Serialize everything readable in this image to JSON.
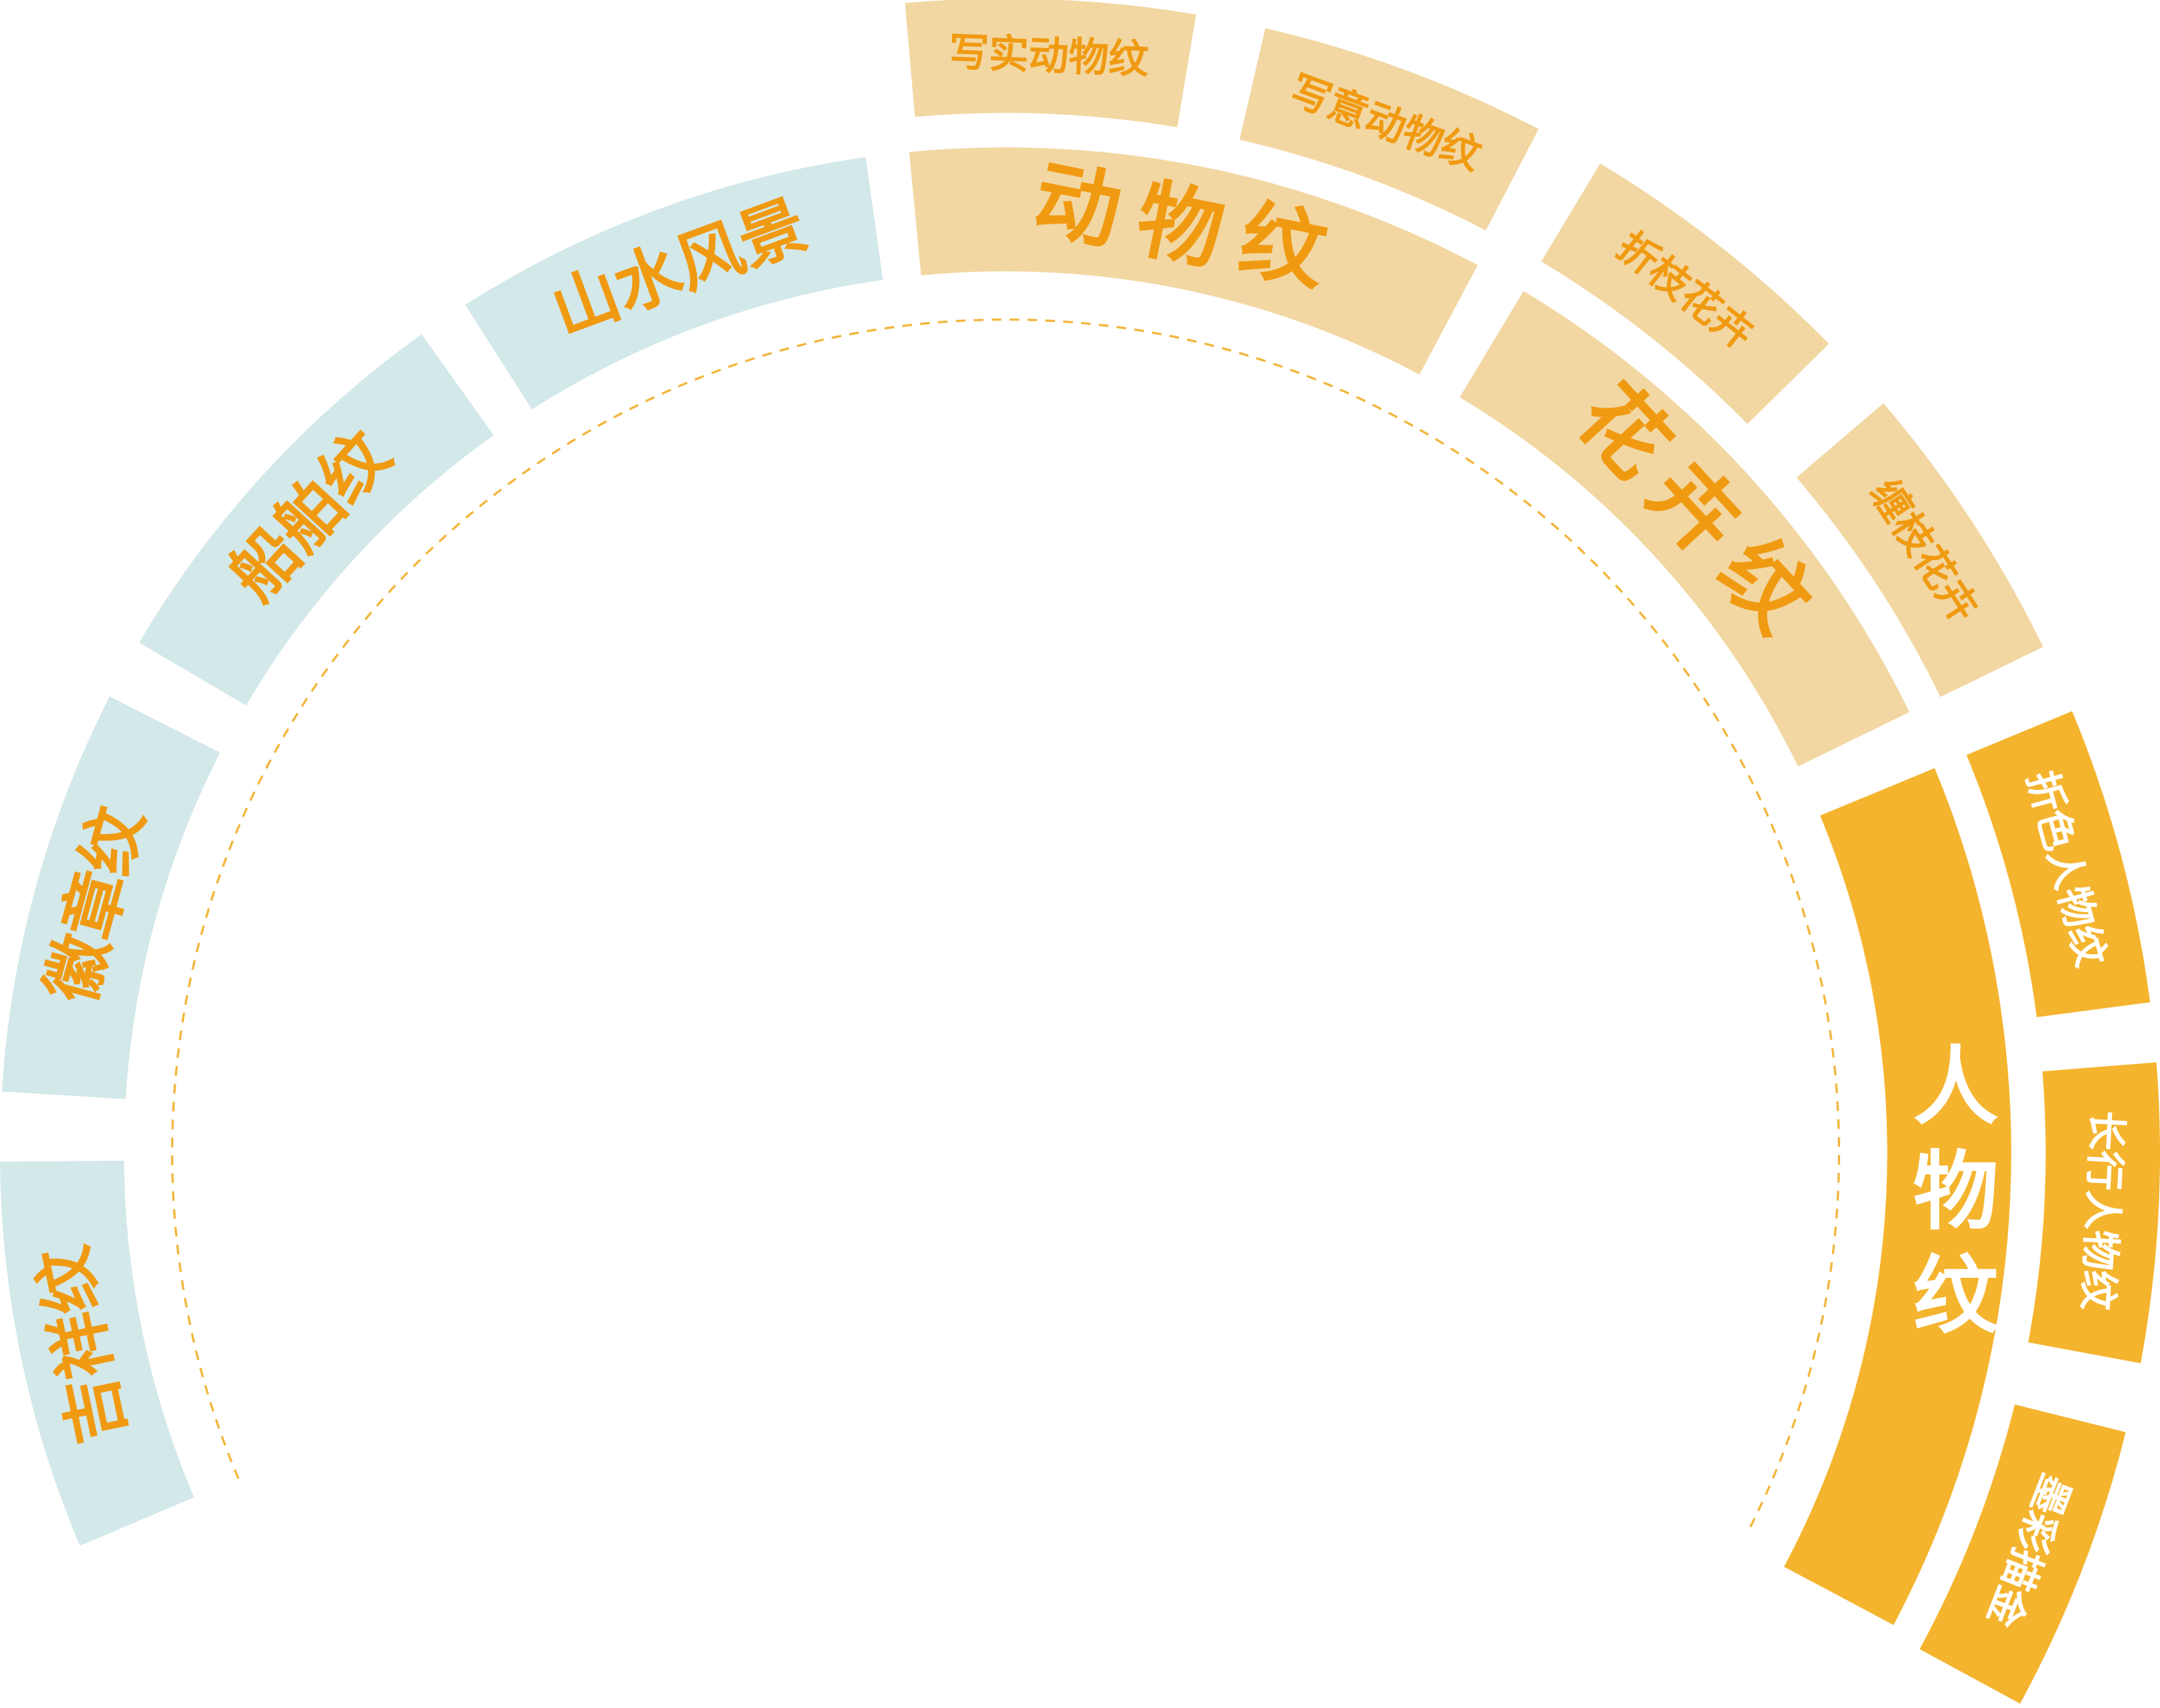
{
  "categories": [
    {
      "label": "吉祥纹"
    },
    {
      "label": "徽章纹"
    },
    {
      "label": "船舶纹"
    },
    {
      "label": "山水风景"
    },
    {
      "label": "动物纹",
      "children": [
        {
          "label": "写实动物纹"
        },
        {
          "label": "写意动物纹"
        }
      ]
    },
    {
      "label": "花卉纹",
      "children": [
        {
          "label": "折枝花卉"
        },
        {
          "label": "缠枝花卉"
        }
      ]
    },
    {
      "label": "人物纹",
      "children": [
        {
          "label": "折色人物纹"
        },
        {
          "label": "长行人物纹"
        },
        {
          "label": "墨彩描金"
        }
      ]
    }
  ]
}
